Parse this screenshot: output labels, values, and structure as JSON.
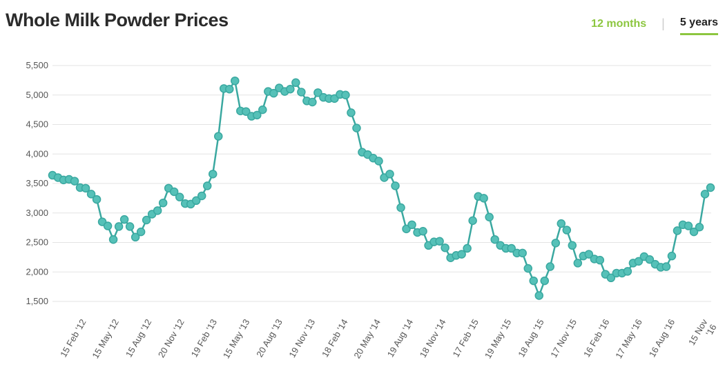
{
  "header": {
    "title": "Whole Milk Powder Prices",
    "tabs": [
      {
        "label": "12 months",
        "active": false
      },
      {
        "label": "5 years",
        "active": true
      }
    ],
    "separator": "|"
  },
  "colors": {
    "line": "#3aa8a0",
    "marker_fill": "#56c1b8",
    "accent": "#8cc63f",
    "grid": "#e3e3e3"
  },
  "chart_data": {
    "type": "line",
    "title": "Whole Milk Powder Prices",
    "xlabel": "",
    "ylabel": "",
    "ylim": [
      1500,
      5500
    ],
    "yticks": [
      1500,
      2000,
      2500,
      3000,
      3500,
      4000,
      4500,
      5000,
      5500
    ],
    "ytick_labels": [
      "1,500",
      "2,000",
      "2,500",
      "3,000",
      "3,500",
      "4,000",
      "4,500",
      "5,000",
      "5,500"
    ],
    "xtick_labels": [
      "15 Feb '12",
      "15 May '12",
      "15 Aug '12",
      "20 Nov '12",
      "19 Feb '13",
      "15 May '13",
      "20 Aug '13",
      "19 Nov '13",
      "18 Feb '14",
      "20 May '14",
      "19 Aug '14",
      "18 Nov '14",
      "17 Feb '15",
      "19 May '15",
      "18 Aug '15",
      "17 Nov '15",
      "16 Feb '16",
      "17 May '16",
      "16 Aug '16",
      "15 Nov '16"
    ],
    "grid": true,
    "legend": "none",
    "series": [
      {
        "values": [
          3640,
          3600,
          3560,
          3570,
          3540,
          3430,
          3420,
          3320,
          3230,
          2850,
          2780,
          2550,
          2770,
          2890,
          2770,
          2590,
          2680,
          2880,
          2980,
          3040,
          3170,
          3420,
          3360,
          3270,
          3160,
          3150,
          3210,
          3290,
          3460,
          3660,
          4300,
          5110,
          5100,
          5240,
          4730,
          4720,
          4640,
          4660,
          4750,
          5060,
          5030,
          5120,
          5060,
          5100,
          5210,
          5050,
          4900,
          4880,
          5040,
          4960,
          4940,
          4940,
          5010,
          5000,
          4700,
          4440,
          4030,
          3990,
          3930,
          3880,
          3600,
          3660,
          3460,
          3090,
          2730,
          2800,
          2670,
          2690,
          2450,
          2510,
          2520,
          2410,
          2240,
          2280,
          2300,
          2400,
          2870,
          3280,
          3250,
          2930,
          2550,
          2450,
          2400,
          2400,
          2320,
          2320,
          2060,
          1850,
          1600,
          1850,
          2090,
          2490,
          2820,
          2710,
          2450,
          2150,
          2270,
          2300,
          2220,
          2200,
          1960,
          1900,
          1980,
          1980,
          2010,
          2150,
          2180,
          2260,
          2210,
          2130,
          2080,
          2090,
          2270,
          2700,
          2800,
          2780,
          2680,
          2760,
          3320,
          3430
        ]
      }
    ]
  }
}
